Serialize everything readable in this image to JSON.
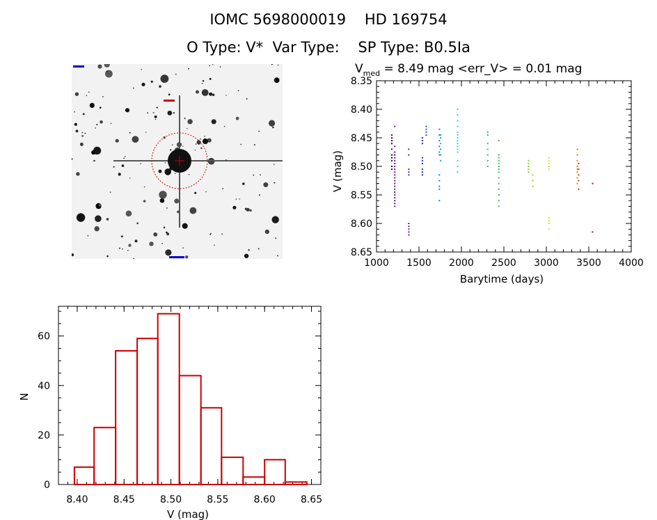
{
  "header": {
    "title_line1": "IOMC 5698000019    HD 169754",
    "title_line2": "O Type: V*  Var Type:    SP Type: B0.5Ia"
  },
  "finder": {
    "marker_colors": [
      "#cc0000",
      "#0000cc"
    ]
  },
  "chart_data": [
    {
      "type": "scatter",
      "title_prefix": "V",
      "title_subscript": "med",
      "title_rest": " = 8.49 mag <err_V> = 0.01 mag",
      "xlabel": "Barytime (days)",
      "ylabel": "V (mag)",
      "xlim": [
        1000,
        4000
      ],
      "ylim": [
        8.65,
        8.35
      ],
      "y_inverted": true,
      "xticks": [
        "1000",
        "1500",
        "2000",
        "2500",
        "3000",
        "3500",
        "4000"
      ],
      "yticks": [
        "8.35",
        "8.40",
        "8.45",
        "8.50",
        "8.55",
        "8.60",
        "8.65"
      ],
      "groups": [
        {
          "x": 1180,
          "color": "#3a0050",
          "y": [
            8.445,
            8.45,
            8.455,
            8.46,
            8.47,
            8.48,
            8.485,
            8.49,
            8.5,
            8.505
          ]
        },
        {
          "x": 1215,
          "color": "#6a1090",
          "y": [
            8.43,
            8.465,
            8.475,
            8.48,
            8.485,
            8.49,
            8.495,
            8.5,
            8.505,
            8.51,
            8.515,
            8.52,
            8.525,
            8.53,
            8.535,
            8.54,
            8.545,
            8.55,
            8.555,
            8.56,
            8.565,
            8.57
          ]
        },
        {
          "x": 1380,
          "color": "#5020a0",
          "y": [
            8.47,
            8.48,
            8.505,
            8.51,
            8.515,
            8.6,
            8.605,
            8.61,
            8.615,
            8.62
          ]
        },
        {
          "x": 1540,
          "color": "#2020c0",
          "y": [
            8.45,
            8.455,
            8.46,
            8.485,
            8.49,
            8.495,
            8.505,
            8.51,
            8.515
          ]
        },
        {
          "x": 1585,
          "color": "#2050d0",
          "y": [
            8.43,
            8.435,
            8.44,
            8.445
          ]
        },
        {
          "x": 1740,
          "color": "#1880d8",
          "y": [
            8.435,
            8.445,
            8.455,
            8.465,
            8.475,
            8.48,
            8.515,
            8.525,
            8.535,
            8.54,
            8.56
          ]
        },
        {
          "x": 1755,
          "color": "#10a0e0",
          "y": [
            8.445,
            8.45,
            8.46,
            8.47,
            8.48,
            8.49
          ]
        },
        {
          "x": 1955,
          "color": "#30d0d0",
          "y": [
            8.4,
            8.41,
            8.42,
            8.43,
            8.44,
            8.445,
            8.45,
            8.455,
            8.46,
            8.465,
            8.47,
            8.475,
            8.49,
            8.5,
            8.51
          ]
        },
        {
          "x": 2310,
          "color": "#20c070",
          "y": [
            8.44,
            8.445,
            8.46,
            8.47,
            8.48,
            8.49,
            8.5
          ]
        },
        {
          "x": 2440,
          "color": "#30c050",
          "y": [
            8.455,
            8.48,
            8.485,
            8.49,
            8.495,
            8.5,
            8.505,
            8.51,
            8.52,
            8.53,
            8.54,
            8.55,
            8.56,
            8.57
          ]
        },
        {
          "x": 2790,
          "color": "#80d030",
          "y": [
            8.49,
            8.495,
            8.5,
            8.505,
            8.51
          ]
        },
        {
          "x": 2840,
          "color": "#90d020",
          "y": [
            8.515,
            8.525,
            8.535
          ]
        },
        {
          "x": 3030,
          "color": "#d0e020",
          "y": [
            8.485,
            8.49,
            8.495,
            8.5,
            8.505,
            8.59,
            8.595,
            8.6,
            8.61
          ]
        },
        {
          "x": 3365,
          "color": "#e08010",
          "y": [
            8.47,
            8.48,
            8.49,
            8.5,
            8.505,
            8.51,
            8.52,
            8.53
          ]
        },
        {
          "x": 3380,
          "color": "#c04010",
          "y": [
            8.495,
            8.505,
            8.515,
            8.525,
            8.54
          ]
        },
        {
          "x": 3545,
          "color": "#a01010",
          "y": [
            8.53,
            8.615
          ]
        }
      ]
    },
    {
      "type": "bar",
      "subtype": "histogram",
      "xlabel": "V (mag)",
      "ylabel": "N",
      "xlim": [
        8.38,
        8.66
      ],
      "ylim": [
        0,
        72
      ],
      "xticks": [
        "8.40",
        "8.45",
        "8.50",
        "8.55",
        "8.60",
        "8.65"
      ],
      "yticks": [
        "0",
        "20",
        "40",
        "60"
      ],
      "bar_color": "#cc0000",
      "bin_edges": [
        8.397,
        8.418,
        8.441,
        8.464,
        8.486,
        8.509,
        8.532,
        8.554,
        8.577,
        8.6,
        8.622,
        8.645
      ],
      "values": [
        7,
        23,
        54,
        59,
        69,
        44,
        31,
        11,
        3,
        10,
        1
      ]
    }
  ]
}
